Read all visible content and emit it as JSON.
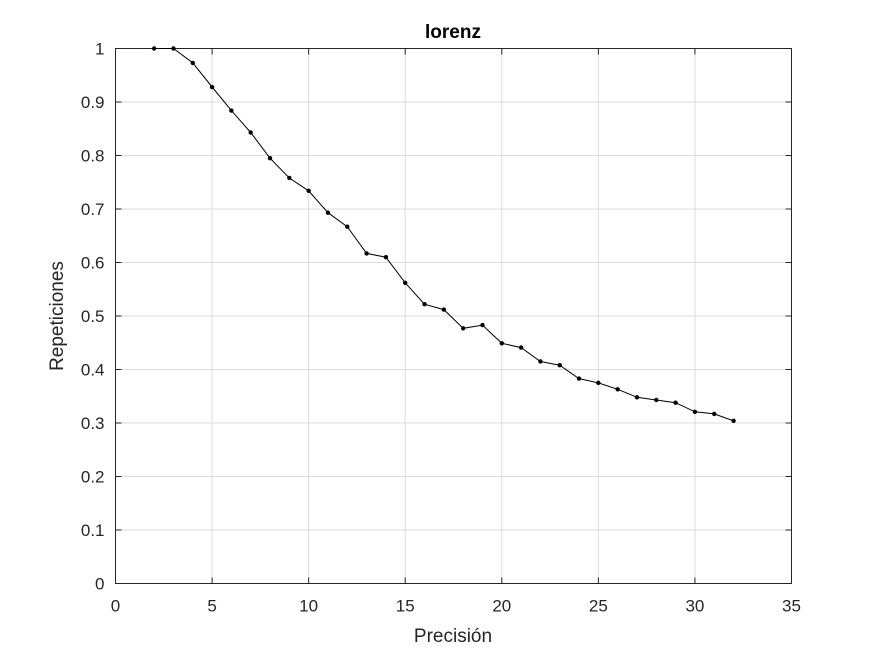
{
  "chart_data": {
    "type": "line",
    "title": "lorenz",
    "xlabel": "Precisión",
    "ylabel": "Repeticiones",
    "xlim": [
      0,
      35
    ],
    "ylim": [
      0,
      1
    ],
    "xticks": [
      0,
      5,
      10,
      15,
      20,
      25,
      30,
      35
    ],
    "yticks": [
      0,
      0.1,
      0.2,
      0.3,
      0.4,
      0.5,
      0.6,
      0.7,
      0.8,
      0.9,
      1
    ],
    "xtick_labels": [
      "0",
      "5",
      "10",
      "15",
      "20",
      "25",
      "30",
      "35"
    ],
    "ytick_labels": [
      "0",
      "0.1",
      "0.2",
      "0.3",
      "0.4",
      "0.5",
      "0.6",
      "0.7",
      "0.8",
      "0.9",
      "1"
    ],
    "grid": true,
    "line_color": "#000000",
    "series": [
      {
        "x": [
          2,
          3,
          4,
          5,
          6,
          7,
          8,
          9,
          10,
          11,
          12,
          13,
          14,
          15,
          16,
          17,
          18,
          19,
          20,
          21,
          22,
          23,
          24,
          25,
          26,
          27,
          28,
          29,
          30,
          31,
          32
        ],
        "y": [
          1.0,
          1.0,
          0.973,
          0.928,
          0.884,
          0.843,
          0.795,
          0.758,
          0.734,
          0.693,
          0.667,
          0.617,
          0.61,
          0.562,
          0.522,
          0.512,
          0.477,
          0.483,
          0.449,
          0.441,
          0.415,
          0.408,
          0.383,
          0.375,
          0.363,
          0.348,
          0.343,
          0.338,
          0.321,
          0.317,
          0.304
        ]
      }
    ]
  }
}
